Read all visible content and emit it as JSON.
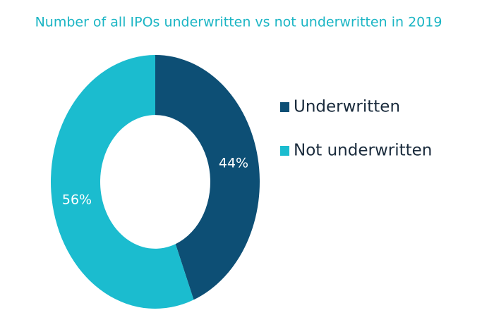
{
  "chart_data": {
    "type": "donut",
    "title": "Number of all IPOs underwritten vs not underwritten in 2019",
    "categories": [
      "Underwritten",
      "Not underwritten"
    ],
    "values": [
      44,
      56
    ],
    "value_labels": [
      "44%",
      "56%"
    ],
    "colors": [
      "#0d4f75",
      "#1bbccf"
    ]
  }
}
